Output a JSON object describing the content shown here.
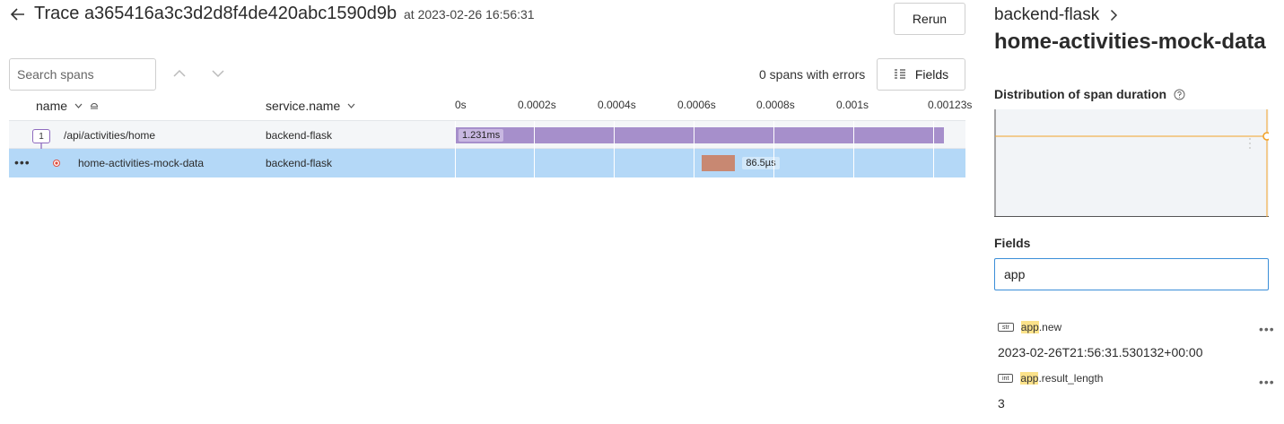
{
  "header": {
    "title": "Trace a365416a3c3d2d8f4de420abc1590d9b",
    "time": "at 2023-02-26 16:56:31",
    "rerun_label": "Rerun"
  },
  "toolbar": {
    "search_placeholder": "Search spans",
    "errors_text": "0 spans with errors",
    "fields_label": "Fields"
  },
  "table": {
    "columns": [
      "name",
      "service.name"
    ],
    "ticks": [
      "0s",
      "0.0002s",
      "0.0004s",
      "0.0006s",
      "0.0008s",
      "0.001s",
      "0.00123s"
    ],
    "rows": [
      {
        "depth_badge": "1",
        "name": "/api/activities/home",
        "service": "backend-flask",
        "duration_label": "1.231ms",
        "start": 0,
        "duration": 0.001231
      },
      {
        "name": "home-activities-mock-data",
        "service": "backend-flask",
        "duration_label": "86.5µs",
        "start": 0.000635,
        "duration": 8.65e-05
      }
    ]
  },
  "panel": {
    "service": "backend-flask",
    "span_name": "home-activities-mock-data",
    "distribution_title": "Distribution of span duration",
    "fields_title": "Fields",
    "fields_filter_value": "app",
    "fields": [
      {
        "type": "str",
        "key_highlight": "app",
        "key_rest": ".new",
        "value": "2023-02-26T21:56:31.530132+00:00"
      },
      {
        "type": "int",
        "key_highlight": "app",
        "key_rest": ".result_length",
        "value": "3"
      }
    ]
  },
  "colors": {
    "root_bar": "#a68fcb",
    "child_bar": "#c88872",
    "selected_row": "#b4d8f7",
    "chart_line": "#f2a228",
    "focus_border": "#3b8ed8"
  }
}
